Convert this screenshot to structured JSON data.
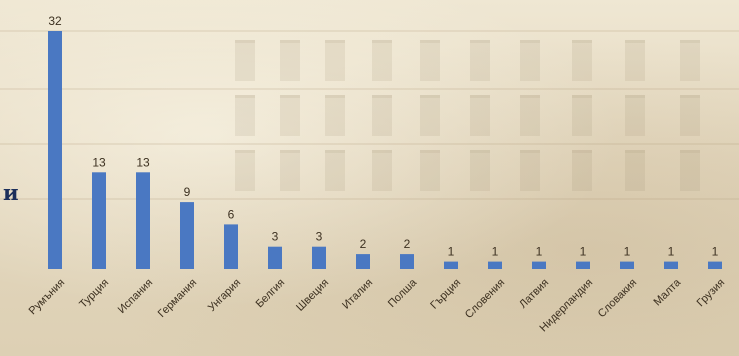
{
  "side_glyph": "и",
  "colors": {
    "bar": "#4a78c2",
    "label": "#3c3020",
    "glyph": "#1c2f5b"
  },
  "chart_data": {
    "type": "bar",
    "categories": [
      "Румъния",
      "Турция",
      "Испания",
      "Германия",
      "Унгария",
      "Белгия",
      "Швеция",
      "Италия",
      "Полша",
      "Гърция",
      "Словения",
      "Латвия",
      "Нидерландия",
      "Словакия",
      "Малта",
      "Грузия"
    ],
    "values": [
      32,
      13,
      13,
      9,
      6,
      3,
      3,
      2,
      2,
      1,
      1,
      1,
      1,
      1,
      1,
      1
    ],
    "title": "",
    "xlabel": "",
    "ylabel": "",
    "ylim": [
      0,
      32
    ],
    "grid": false,
    "data_labels": true
  }
}
